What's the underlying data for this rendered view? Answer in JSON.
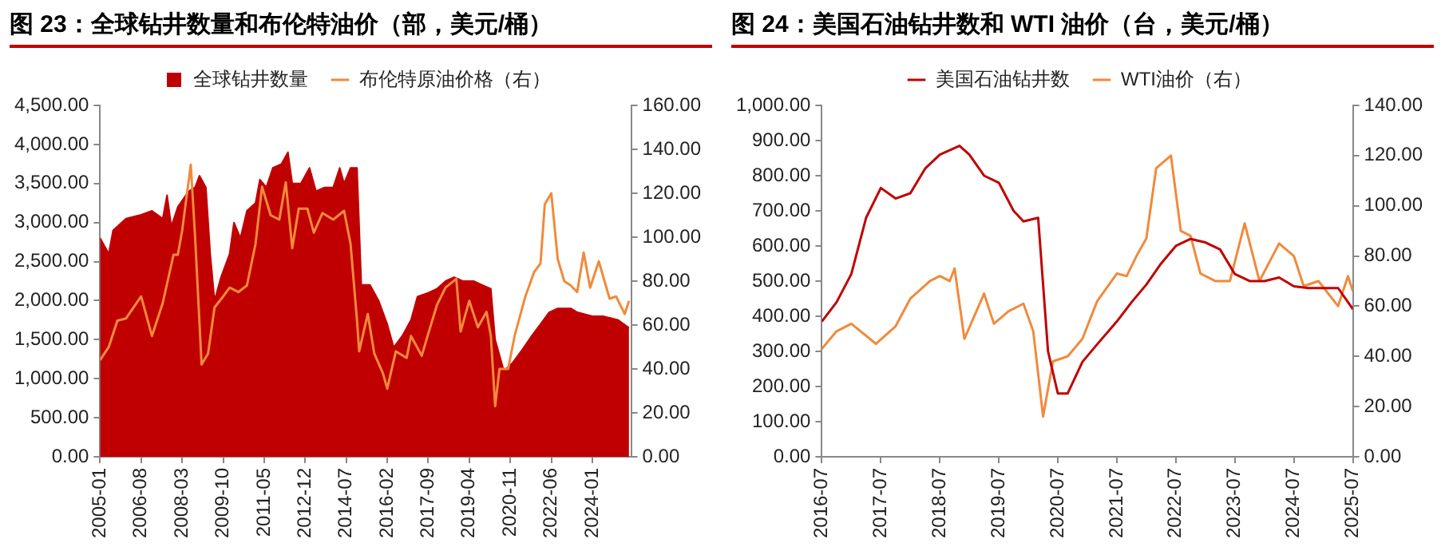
{
  "chart_data": [
    {
      "type": "area",
      "title": "图 23：全球钻井数量和布伦特油价（部，美元/桶）",
      "legend": "top",
      "grid": false,
      "xlim": [
        "2005-01",
        "2025-07"
      ],
      "xticks": [
        "2005-01",
        "2006-08",
        "2008-03",
        "2009-10",
        "2011-05",
        "2012-12",
        "2014-07",
        "2016-02",
        "2017-09",
        "2019-04",
        "2020-11",
        "2022-06",
        "2024-01"
      ],
      "ylim": [
        0,
        4500
      ],
      "yticks": [
        {
          "value": 0,
          "label": "0.00"
        },
        {
          "value": 500,
          "label": "500.00"
        },
        {
          "value": 1000,
          "label": "1,000.00"
        },
        {
          "value": 1500,
          "label": "1,500.00"
        },
        {
          "value": 2000,
          "label": "2,000.00"
        },
        {
          "value": 2500,
          "label": "2,500.00"
        },
        {
          "value": 3000,
          "label": "3,000.00"
        },
        {
          "value": 3500,
          "label": "3,500.00"
        },
        {
          "value": 4000,
          "label": "4,000.00"
        },
        {
          "value": 4500,
          "label": "4,500.00"
        }
      ],
      "y2lim": [
        0,
        160
      ],
      "y2ticks": [
        {
          "value": 0,
          "label": "0.00"
        },
        {
          "value": 20,
          "label": "20.00"
        },
        {
          "value": 40,
          "label": "40.00"
        },
        {
          "value": 60,
          "label": "60.00"
        },
        {
          "value": 80,
          "label": "80.00"
        },
        {
          "value": 100,
          "label": "100.00"
        },
        {
          "value": 120,
          "label": "120.00"
        },
        {
          "value": 140,
          "label": "140.00"
        },
        {
          "value": 160,
          "label": "160.00"
        }
      ],
      "series": [
        {
          "name": "全球钻井数量",
          "color": "#c00000",
          "x": [
            "2005-01",
            "2005-05",
            "2005-07",
            "2006-01",
            "2006-08",
            "2007-01",
            "2007-06",
            "2007-08",
            "2007-10",
            "2008-01",
            "2008-06",
            "2008-09",
            "2008-11",
            "2009-02",
            "2009-04",
            "2009-06",
            "2009-09",
            "2010-01",
            "2010-03",
            "2010-06",
            "2010-09",
            "2011-01",
            "2011-03",
            "2011-06",
            "2011-09",
            "2012-01",
            "2012-04",
            "2012-06",
            "2012-10",
            "2013-02",
            "2013-05",
            "2013-09",
            "2014-01",
            "2014-04",
            "2014-06",
            "2014-09",
            "2014-12",
            "2015-02",
            "2015-06",
            "2015-10",
            "2016-02",
            "2016-05",
            "2016-09",
            "2017-01",
            "2017-04",
            "2017-09",
            "2018-01",
            "2018-05",
            "2018-09",
            "2019-01",
            "2019-06",
            "2019-10",
            "2020-02",
            "2020-04",
            "2020-08",
            "2020-12",
            "2021-04",
            "2021-09",
            "2022-01",
            "2022-05",
            "2022-09",
            "2023-03",
            "2023-06",
            "2024-01",
            "2024-06",
            "2025-01",
            "2025-06"
          ],
          "values": [
            2800,
            2600,
            2900,
            3050,
            3100,
            3150,
            3050,
            3350,
            2950,
            3200,
            3400,
            3450,
            3600,
            3450,
            2600,
            2000,
            2300,
            2600,
            3000,
            2800,
            3150,
            3250,
            3550,
            3450,
            3700,
            3750,
            3900,
            3500,
            3500,
            3700,
            3400,
            3450,
            3450,
            3700,
            3500,
            3700,
            3700,
            2200,
            2200,
            2000,
            1700,
            1400,
            1550,
            1750,
            2050,
            2100,
            2150,
            2250,
            2300,
            2250,
            2250,
            2200,
            2150,
            1500,
            1100,
            1200,
            1350,
            1550,
            1700,
            1850,
            1900,
            1900,
            1850,
            1800,
            1800,
            1750,
            1650
          ]
        },
        {
          "name": "布伦特原油价格（右）",
          "type": "line",
          "axis": "y2",
          "color": "#f08a3c",
          "x": [
            "2005-01",
            "2005-05",
            "2005-09",
            "2006-01",
            "2006-08",
            "2007-01",
            "2007-06",
            "2007-11",
            "2008-01",
            "2008-03",
            "2008-07",
            "2008-09",
            "2008-12",
            "2009-03",
            "2009-06",
            "2009-10",
            "2010-01",
            "2010-05",
            "2010-09",
            "2011-01",
            "2011-04",
            "2011-08",
            "2011-12",
            "2012-03",
            "2012-06",
            "2012-09",
            "2013-01",
            "2013-04",
            "2013-08",
            "2014-01",
            "2014-06",
            "2014-09",
            "2014-12",
            "2015-01",
            "2015-05",
            "2015-08",
            "2015-12",
            "2016-02",
            "2016-06",
            "2016-11",
            "2017-01",
            "2017-06",
            "2017-09",
            "2018-01",
            "2018-05",
            "2018-10",
            "2018-12",
            "2019-04",
            "2019-08",
            "2019-12",
            "2020-02",
            "2020-04",
            "2020-06",
            "2020-10",
            "2021-01",
            "2021-06",
            "2021-10",
            "2022-01",
            "2022-03",
            "2022-06",
            "2022-09",
            "2022-12",
            "2023-03",
            "2023-06",
            "2023-09",
            "2023-12",
            "2024-04",
            "2024-09",
            "2024-12",
            "2025-04",
            "2025-06"
          ],
          "values": [
            44,
            50,
            62,
            63,
            73,
            55,
            70,
            92,
            92,
            103,
            133,
            100,
            42,
            47,
            68,
            73,
            77,
            75,
            78,
            97,
            123,
            110,
            108,
            125,
            95,
            113,
            113,
            102,
            111,
            108,
            112,
            97,
            62,
            48,
            65,
            47,
            38,
            31,
            48,
            45,
            55,
            46,
            56,
            69,
            77,
            81,
            57,
            71,
            59,
            66,
            55,
            23,
            40,
            40,
            55,
            73,
            84,
            88,
            115,
            120,
            90,
            80,
            78,
            75,
            93,
            77,
            89,
            72,
            73,
            65,
            71
          ]
        }
      ]
    },
    {
      "type": "line",
      "title": "图 24：美国石油钻井数和 WTI 油价（台，美元/桶）",
      "legend": "top",
      "grid": false,
      "xlim": [
        "2016-07",
        "2025-07"
      ],
      "xticks": [
        "2016-07",
        "2017-07",
        "2018-07",
        "2019-07",
        "2020-07",
        "2021-07",
        "2022-07",
        "2023-07",
        "2024-07",
        "2025-07"
      ],
      "ylim": [
        0,
        1000
      ],
      "yticks": [
        {
          "value": 0,
          "label": "0.00"
        },
        {
          "value": 100,
          "label": "100.00"
        },
        {
          "value": 200,
          "label": "200.00"
        },
        {
          "value": 300,
          "label": "300.00"
        },
        {
          "value": 400,
          "label": "400.00"
        },
        {
          "value": 500,
          "label": "500.00"
        },
        {
          "value": 600,
          "label": "600.00"
        },
        {
          "value": 700,
          "label": "700.00"
        },
        {
          "value": 800,
          "label": "800.00"
        },
        {
          "value": 900,
          "label": "900.00"
        },
        {
          "value": 1000,
          "label": "1,000.00"
        }
      ],
      "y2lim": [
        0,
        140
      ],
      "y2ticks": [
        {
          "value": 0,
          "label": "0.00"
        },
        {
          "value": 20,
          "label": "20.00"
        },
        {
          "value": 40,
          "label": "40.00"
        },
        {
          "value": 60,
          "label": "60.00"
        },
        {
          "value": 80,
          "label": "80.00"
        },
        {
          "value": 100,
          "label": "100.00"
        },
        {
          "value": 120,
          "label": "120.00"
        },
        {
          "value": 140,
          "label": "140.00"
        }
      ],
      "series": [
        {
          "name": "美国石油钻井数",
          "color": "#c00000",
          "x": [
            "2016-07",
            "2016-10",
            "2017-01",
            "2017-04",
            "2017-07",
            "2017-10",
            "2018-01",
            "2018-04",
            "2018-07",
            "2018-11",
            "2019-01",
            "2019-04",
            "2019-07",
            "2019-10",
            "2019-12",
            "2020-03",
            "2020-05",
            "2020-07",
            "2020-09",
            "2020-12",
            "2021-03",
            "2021-07",
            "2021-10",
            "2022-01",
            "2022-04",
            "2022-07",
            "2022-10",
            "2023-01",
            "2023-04",
            "2023-07",
            "2023-10",
            "2024-01",
            "2024-04",
            "2024-07",
            "2024-10",
            "2025-01",
            "2025-04",
            "2025-07"
          ],
          "values": [
            385,
            440,
            520,
            680,
            765,
            735,
            750,
            820,
            860,
            885,
            860,
            800,
            780,
            700,
            670,
            680,
            300,
            180,
            180,
            270,
            320,
            385,
            440,
            490,
            550,
            600,
            620,
            610,
            590,
            520,
            500,
            500,
            510,
            485,
            480,
            480,
            480,
            420
          ]
        },
        {
          "name": "WTI油价（右）",
          "axis": "y2",
          "color": "#f08a3c",
          "x": [
            "2016-07",
            "2016-10",
            "2017-01",
            "2017-06",
            "2017-10",
            "2018-01",
            "2018-05",
            "2018-07",
            "2018-09",
            "2018-10",
            "2018-12",
            "2019-04",
            "2019-06",
            "2019-09",
            "2019-12",
            "2020-02",
            "2020-04",
            "2020-06",
            "2020-09",
            "2020-12",
            "2021-03",
            "2021-07",
            "2021-09",
            "2021-11",
            "2022-01",
            "2022-03",
            "2022-06",
            "2022-08",
            "2022-10",
            "2022-12",
            "2023-03",
            "2023-06",
            "2023-09",
            "2023-12",
            "2024-04",
            "2024-07",
            "2024-09",
            "2024-12",
            "2025-04",
            "2025-06",
            "2025-07"
          ],
          "values": [
            43,
            50,
            53,
            45,
            52,
            63,
            70,
            72,
            70,
            75,
            47,
            65,
            53,
            58,
            61,
            50,
            16,
            38,
            40,
            47,
            62,
            73,
            72,
            80,
            87,
            115,
            120,
            90,
            88,
            73,
            70,
            70,
            93,
            70,
            85,
            80,
            68,
            70,
            60,
            72,
            66
          ]
        }
      ]
    }
  ]
}
